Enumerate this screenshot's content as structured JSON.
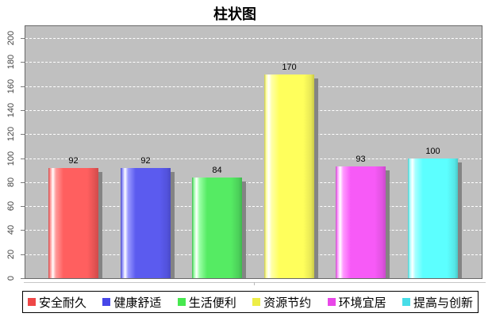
{
  "chart_data": {
    "type": "bar",
    "title": "柱状图",
    "categories": [
      "安全耐久",
      "健康舒适",
      "生活便利",
      "资源节约",
      "环境宜居",
      "提高与创新"
    ],
    "values": [
      92,
      92,
      84,
      170,
      93,
      100
    ],
    "value_labels": [
      "92",
      "92",
      "84",
      "170",
      "93",
      "100"
    ],
    "y_ticks": [
      0,
      20,
      40,
      60,
      80,
      100,
      120,
      140,
      160,
      180,
      200
    ],
    "ylim": [
      0,
      210
    ],
    "xlabel": "",
    "ylabel": "",
    "grid": "horizontal-dashed-white",
    "legend_position": "bottom",
    "plot_background": "#c0c0c0",
    "bar_shadow_color": "#848484",
    "series_colors": [
      {
        "name": "安全耐久",
        "legend": "#ee4747",
        "main": "#ff5f5f",
        "pale": "#ff9a9a",
        "edge": "#cf4a4a",
        "dark": "#e05252"
      },
      {
        "name": "健康舒适",
        "legend": "#4747e8",
        "main": "#5b5bef",
        "pale": "#9a9aff",
        "edge": "#4a4ac4",
        "dark": "#5252dc"
      },
      {
        "name": "生活便利",
        "legend": "#47e84f",
        "main": "#55eb63",
        "pale": "#9affa6",
        "edge": "#3fb94f",
        "dark": "#4cd05a"
      },
      {
        "name": "资源节约",
        "legend": "#eded47",
        "main": "#ffff5c",
        "pale": "#ffffa6",
        "edge": "#c9c94a",
        "dark": "#e8e856"
      },
      {
        "name": "环境宜居",
        "legend": "#e847e8",
        "main": "#f75af7",
        "pale": "#ff9aff",
        "edge": "#c94ac9",
        "dark": "#e052e0"
      },
      {
        "name": "提高与创新",
        "legend": "#47dde8",
        "main": "#5cffff",
        "pale": "#a6ffff",
        "edge": "#4ac9c9",
        "dark": "#56e8e8"
      }
    ]
  }
}
